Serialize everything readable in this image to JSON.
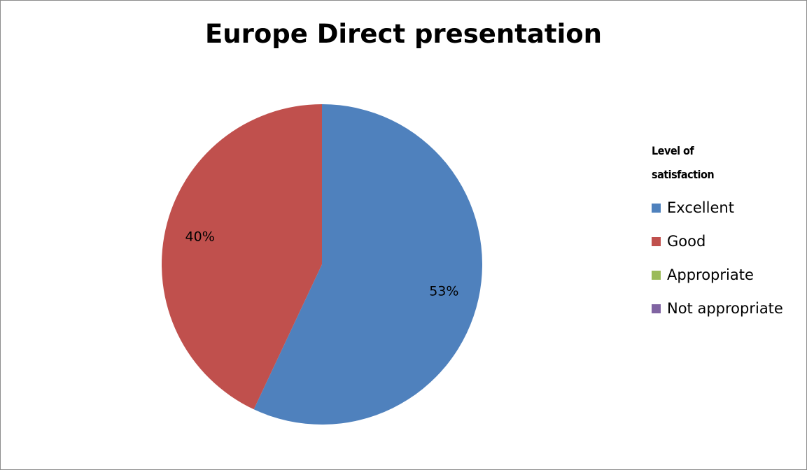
{
  "chart_data": {
    "type": "pie",
    "title": "Europe Direct presentation",
    "legend_title": "Level of satisfaction",
    "legend_position": "right",
    "categories": [
      "Excellent",
      "Good",
      "Appropriate",
      "Not appropriate"
    ],
    "values": [
      53,
      40,
      0,
      0
    ],
    "data_labels": [
      "53%",
      "40%",
      "",
      ""
    ],
    "colors": [
      "#4f81bd",
      "#c0504d",
      "#9bbb59",
      "#8064a2"
    ],
    "start_angle_deg": 0,
    "direction": "clockwise"
  }
}
